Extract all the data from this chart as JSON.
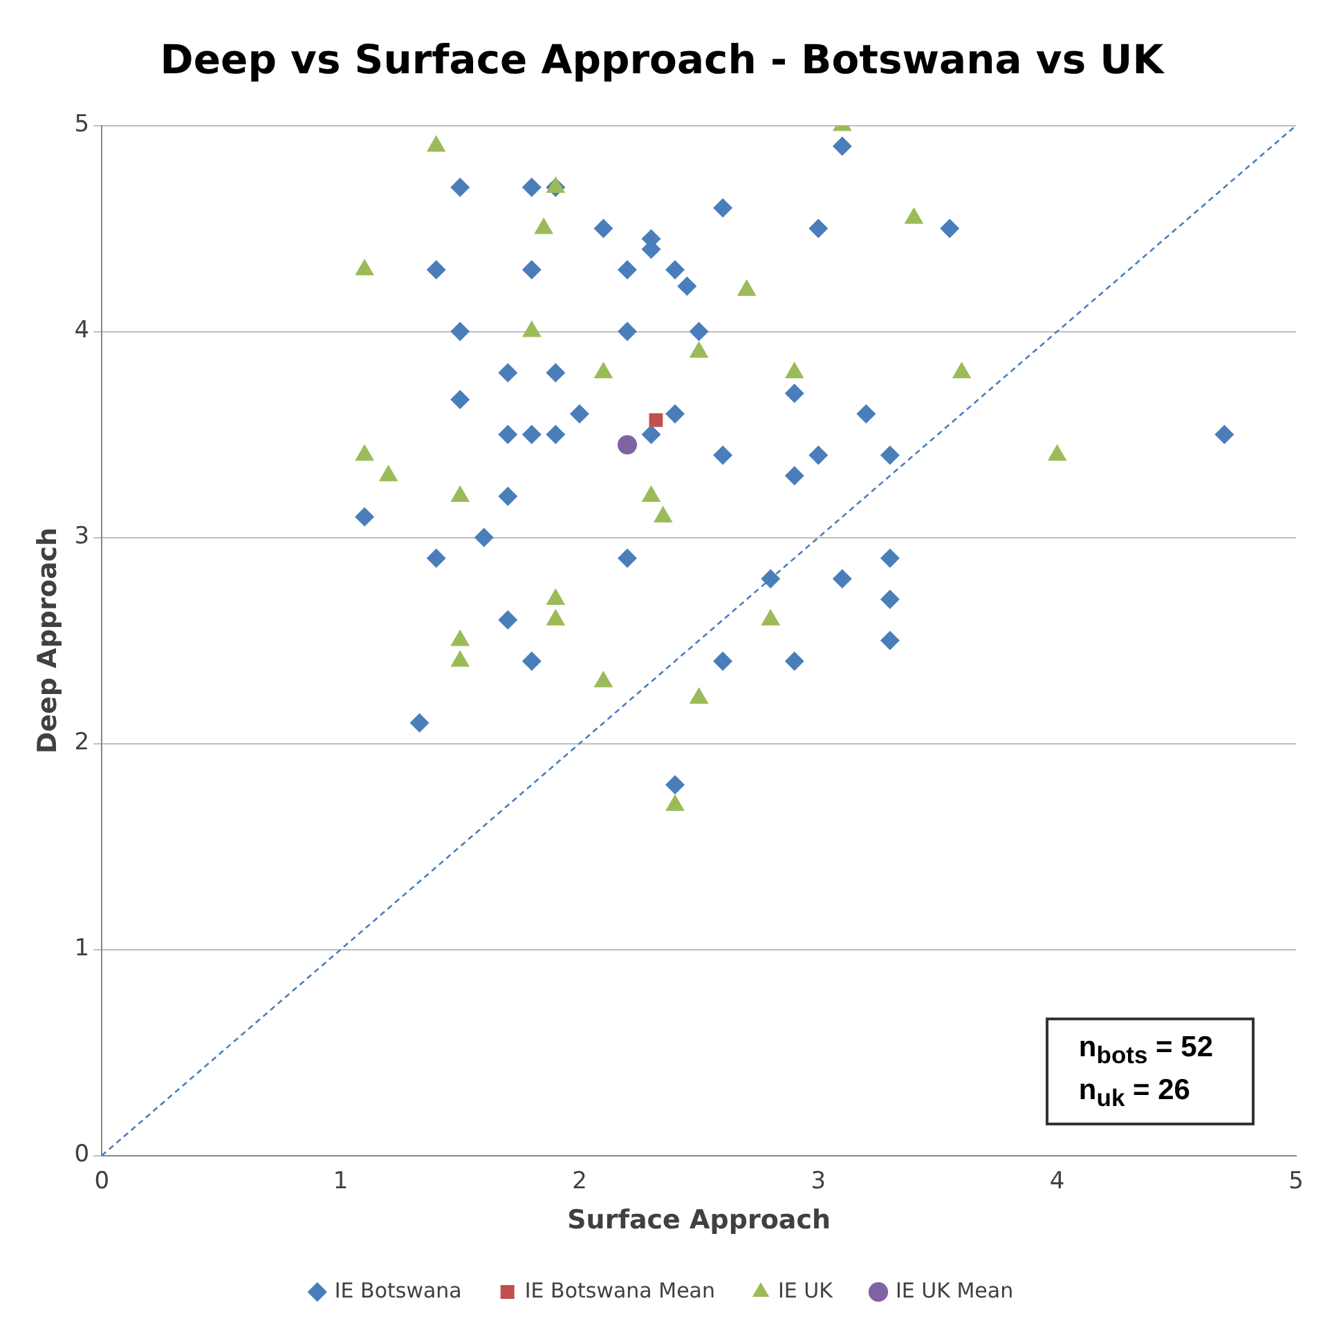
{
  "chart_data": {
    "type": "scatter",
    "title": "Deep vs Surface Approach - Botswana vs UK",
    "xlabel": "Surface Approach",
    "ylabel": "Deep Approach",
    "xlim": [
      0,
      5
    ],
    "xticks": [
      0,
      1,
      2,
      3,
      4,
      5
    ],
    "ylim": [
      0,
      5
    ],
    "yticks": [
      0,
      1,
      2,
      3,
      4,
      5
    ],
    "grid": "y",
    "legend": "bottom",
    "annotations": [
      "n$_{bots}$ = 52",
      "n$_{uk}$ = 26"
    ],
    "series": [
      {
        "name": "IE Botswana",
        "color": "#4a7ebb",
        "marker": "diamond",
        "x": [
          1.5,
          1.8,
          1.9,
          3.1,
          2.6,
          3.0,
          3.55,
          2.1,
          2.3,
          2.3,
          1.4,
          1.8,
          2.2,
          2.4,
          2.45,
          1.5,
          2.2,
          2.5,
          1.7,
          1.9,
          1.5,
          2.0,
          2.4,
          3.2,
          1.7,
          1.8,
          1.9,
          2.3,
          4.7,
          2.9,
          2.6,
          3.0,
          3.3,
          1.1,
          1.7,
          1.6,
          2.9,
          1.4,
          2.2,
          3.3,
          2.8,
          3.1,
          3.3,
          1.7,
          1.8,
          2.6,
          2.9,
          3.3,
          1.33,
          2.4
        ],
        "values": [
          4.7,
          4.7,
          4.7,
          4.9,
          4.6,
          4.5,
          4.5,
          4.5,
          4.45,
          4.4,
          4.3,
          4.3,
          4.3,
          4.3,
          4.22,
          4.0,
          4.0,
          4.0,
          3.8,
          3.8,
          3.67,
          3.6,
          3.6,
          3.6,
          3.5,
          3.5,
          3.5,
          3.5,
          3.5,
          3.7,
          3.4,
          3.4,
          3.4,
          3.1,
          3.2,
          3.0,
          3.3,
          2.9,
          2.9,
          2.9,
          2.8,
          2.8,
          2.7,
          2.6,
          2.4,
          2.4,
          2.4,
          2.5,
          2.1,
          1.8
        ]
      },
      {
        "name": "IE Botswana Mean",
        "color": "#c0504d",
        "marker": "square",
        "x": [
          2.32
        ],
        "values": [
          3.57
        ]
      },
      {
        "name": "IE UK",
        "color": "#9bbb59",
        "marker": "triangle",
        "x": [
          1.4,
          3.1,
          1.9,
          1.85,
          3.4,
          1.1,
          2.7,
          1.8,
          2.5,
          2.1,
          2.9,
          3.6,
          1.1,
          1.2,
          4.0,
          1.5,
          2.3,
          2.35,
          1.9,
          1.9,
          2.8,
          1.5,
          1.5,
          2.1,
          2.5,
          2.4
        ],
        "values": [
          4.9,
          5.0,
          4.7,
          4.5,
          4.55,
          4.3,
          4.2,
          4.0,
          3.9,
          3.8,
          3.8,
          3.8,
          3.4,
          3.3,
          3.4,
          3.2,
          3.2,
          3.1,
          2.7,
          2.6,
          2.6,
          2.5,
          2.4,
          2.3,
          2.22,
          1.7
        ]
      },
      {
        "name": "IE UK Mean",
        "color": "#8064a2",
        "marker": "circle",
        "x": [
          2.2
        ],
        "values": [
          3.45
        ]
      },
      {
        "type": "line",
        "color": "#4a7ebb",
        "marker": "none",
        "line_style": "dashed",
        "x": [
          0,
          5
        ],
        "values": [
          0,
          5
        ]
      }
    ]
  }
}
